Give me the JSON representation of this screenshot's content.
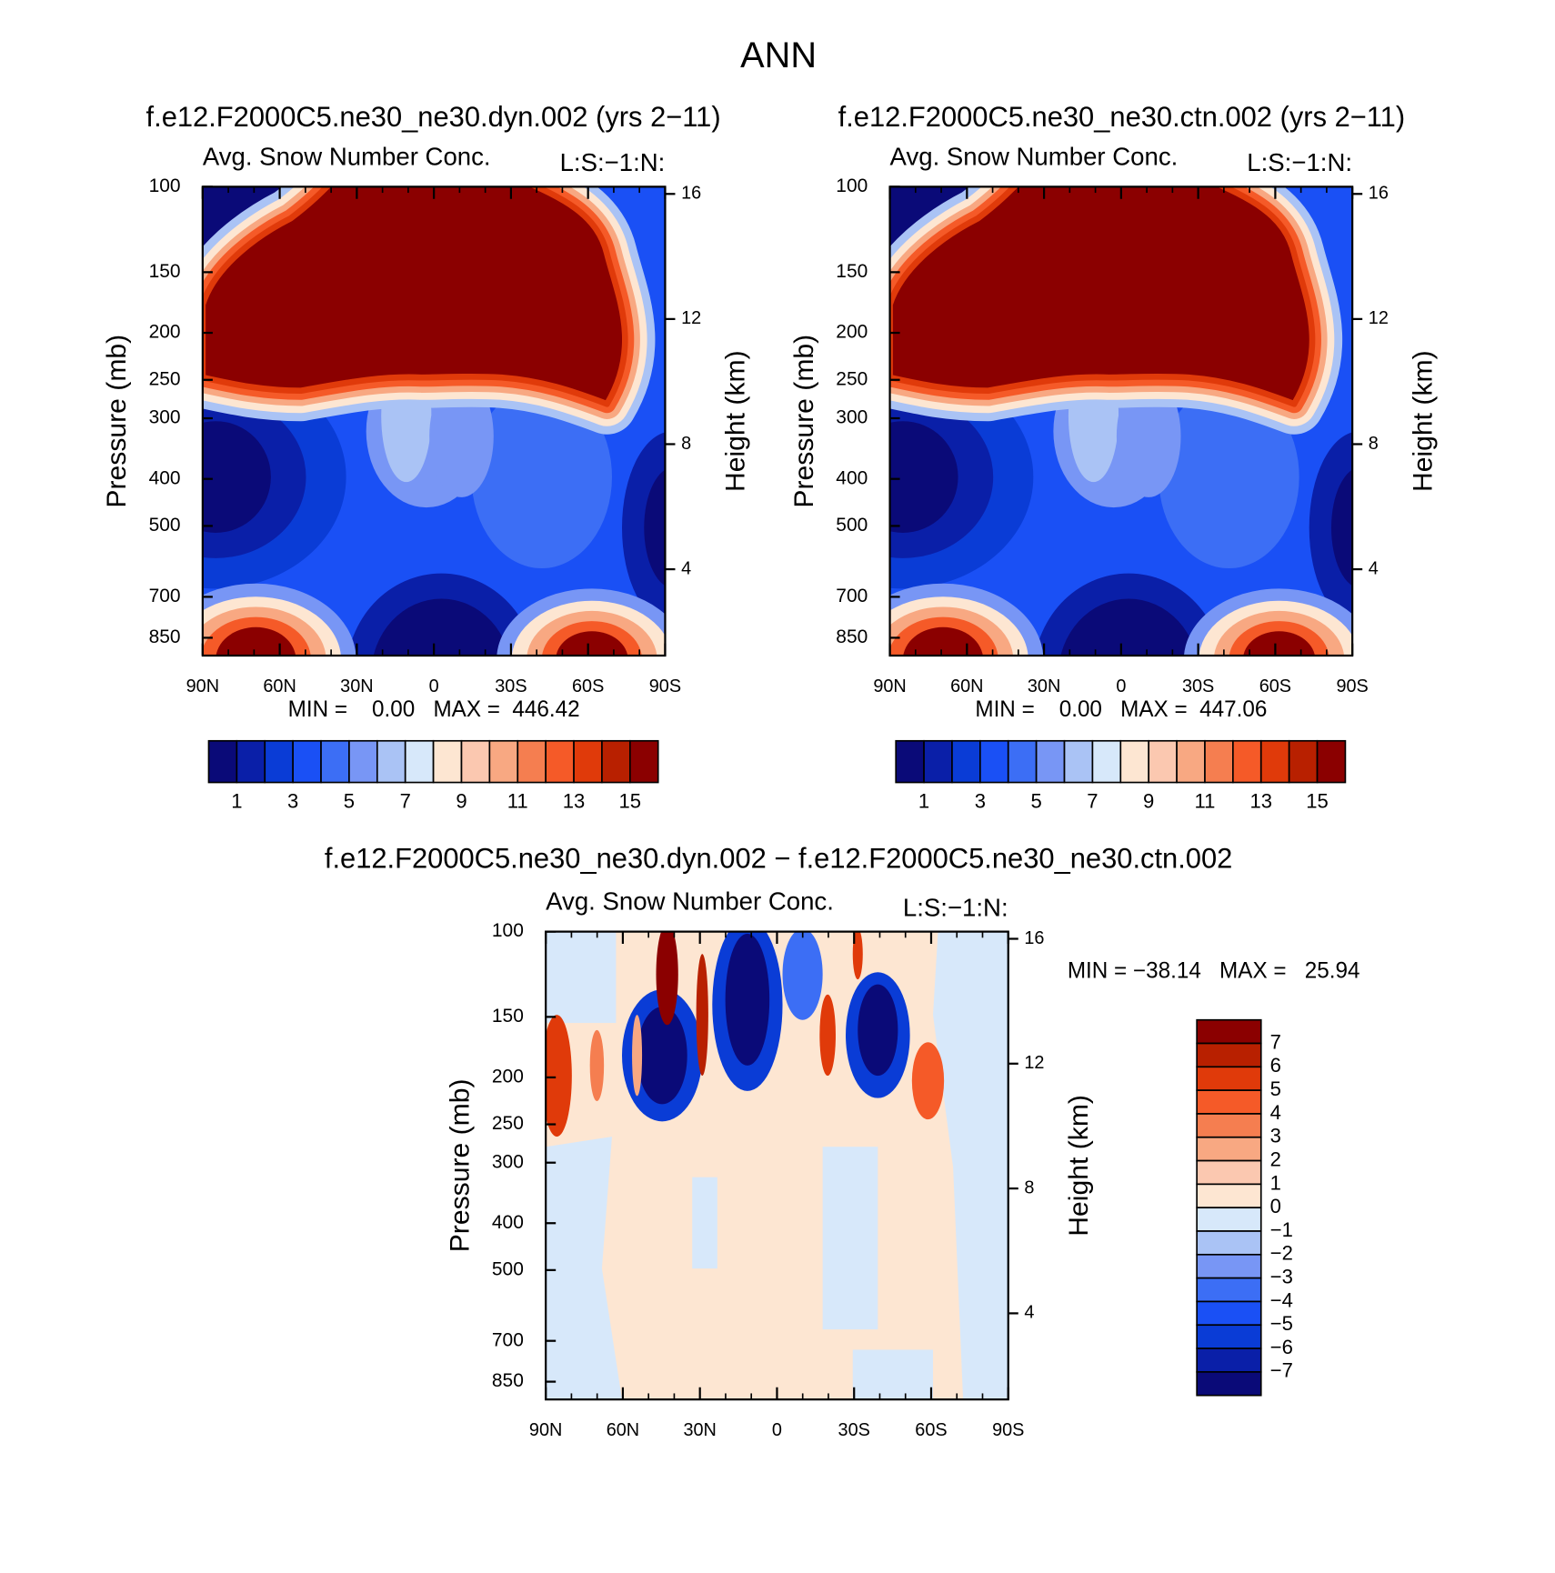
{
  "title": "ANN",
  "chart_data": [
    {
      "type": "contour",
      "title": "f.e12.F2000C5.ne30_ne30.dyn.002 (yrs 2−11)",
      "subtitle": "Avg. Snow Number Conc.",
      "corner_label": "L:S:−1:N:",
      "ylabel": "Pressure (mb)",
      "y2label": "Height (km)",
      "stats": "MIN =    0.00   MAX =  446.42",
      "xlim": [
        90,
        -90
      ],
      "xticks": [
        {
          "value": 90,
          "label": "90N"
        },
        {
          "value": 60,
          "label": "60N"
        },
        {
          "value": 30,
          "label": "30N"
        },
        0,
        {
          "value": -30,
          "label": "30S"
        },
        {
          "value": -60,
          "label": "60S"
        },
        {
          "value": -90,
          "label": "90S"
        }
      ],
      "ylim": [
        925,
        100
      ],
      "log_y": true,
      "yticks": [
        100,
        150,
        200,
        250,
        300,
        400,
        500,
        700,
        850
      ],
      "y2lim": [
        1.24,
        16.23
      ],
      "y2ticks": [
        16,
        12,
        8,
        4
      ],
      "colorbar": {
        "orientation": "horizontal",
        "lim": [
          0,
          16
        ],
        "colors": [
          "#0a0a78",
          "#0a1fa8",
          "#0a3cd6",
          "#1a50f5",
          "#3c6ef5",
          "#7896f5",
          "#aac3f5",
          "#d7e8fa",
          "#fde6d2",
          "#fbc8b0",
          "#f8a882",
          "#f57e50",
          "#f55a28",
          "#e03a0a",
          "#b82000",
          "#8b0000"
        ],
        "ticks": [
          1,
          3,
          5,
          7,
          9,
          11,
          13,
          15
        ]
      }
    },
    {
      "type": "contour",
      "title": "f.e12.F2000C5.ne30_ne30.ctn.002 (yrs 2−11)",
      "subtitle": "Avg. Snow Number Conc.",
      "corner_label": "L:S:−1:N:",
      "ylabel": "Pressure (mb)",
      "y2label": "Height (km)",
      "stats": "MIN =    0.00   MAX =  447.06",
      "xlim": [
        90,
        -90
      ],
      "xticks": [
        {
          "value": 90,
          "label": "90N"
        },
        {
          "value": 60,
          "label": "60N"
        },
        {
          "value": 30,
          "label": "30N"
        },
        0,
        {
          "value": -30,
          "label": "30S"
        },
        {
          "value": -60,
          "label": "60S"
        },
        {
          "value": -90,
          "label": "90S"
        }
      ],
      "ylim": [
        925,
        100
      ],
      "log_y": true,
      "yticks": [
        100,
        150,
        200,
        250,
        300,
        400,
        500,
        700,
        850
      ],
      "y2lim": [
        1.24,
        16.23
      ],
      "y2ticks": [
        16,
        12,
        8,
        4
      ],
      "colorbar": {
        "orientation": "horizontal",
        "lim": [
          0,
          16
        ],
        "colors": [
          "#0a0a78",
          "#0a1fa8",
          "#0a3cd6",
          "#1a50f5",
          "#3c6ef5",
          "#7896f5",
          "#aac3f5",
          "#d7e8fa",
          "#fde6d2",
          "#fbc8b0",
          "#f8a882",
          "#f57e50",
          "#f55a28",
          "#e03a0a",
          "#b82000",
          "#8b0000"
        ],
        "ticks": [
          1,
          3,
          5,
          7,
          9,
          11,
          13,
          15
        ]
      }
    },
    {
      "type": "contour",
      "title": "f.e12.F2000C5.ne30_ne30.dyn.002 − f.e12.F2000C5.ne30_ne30.ctn.002",
      "subtitle": "Avg. Snow Number Conc.",
      "corner_label": "L:S:−1:N:",
      "ylabel": "Pressure (mb)",
      "y2label": "Height (km)",
      "stats": "MIN = −38.14   MAX =   25.94",
      "xlim": [
        90,
        -90
      ],
      "xticks": [
        {
          "value": 90,
          "label": "90N"
        },
        {
          "value": 60,
          "label": "60N"
        },
        {
          "value": 30,
          "label": "30N"
        },
        0,
        {
          "value": -30,
          "label": "30S"
        },
        {
          "value": -60,
          "label": "60S"
        },
        {
          "value": -90,
          "label": "90S"
        }
      ],
      "ylim": [
        925,
        100
      ],
      "log_y": true,
      "yticks": [
        100,
        150,
        200,
        250,
        300,
        400,
        500,
        700,
        850
      ],
      "y2lim": [
        1.24,
        16.23
      ],
      "y2ticks": [
        16,
        12,
        8,
        4
      ],
      "colorbar": {
        "orientation": "vertical",
        "lim": [
          -8,
          8
        ],
        "colors": [
          "#8b0000",
          "#b82000",
          "#e03a0a",
          "#f55a28",
          "#f57e50",
          "#f8a882",
          "#fbc8b0",
          "#fde6d2",
          "#d7e8fa",
          "#aac3f5",
          "#7896f5",
          "#3c6ef5",
          "#1a50f5",
          "#0a3cd6",
          "#0a1fa8",
          "#0a0a78"
        ],
        "ticks": [
          7,
          6,
          5,
          4,
          3,
          2,
          1,
          0,
          {
            "value": -1,
            "label": "−1"
          },
          {
            "value": -2,
            "label": "−2"
          },
          {
            "value": -3,
            "label": "−3"
          },
          {
            "value": -4,
            "label": "−4"
          },
          {
            "value": -5,
            "label": "−5"
          },
          {
            "value": -6,
            "label": "−6"
          },
          {
            "value": -7,
            "label": "−7"
          }
        ]
      }
    }
  ]
}
